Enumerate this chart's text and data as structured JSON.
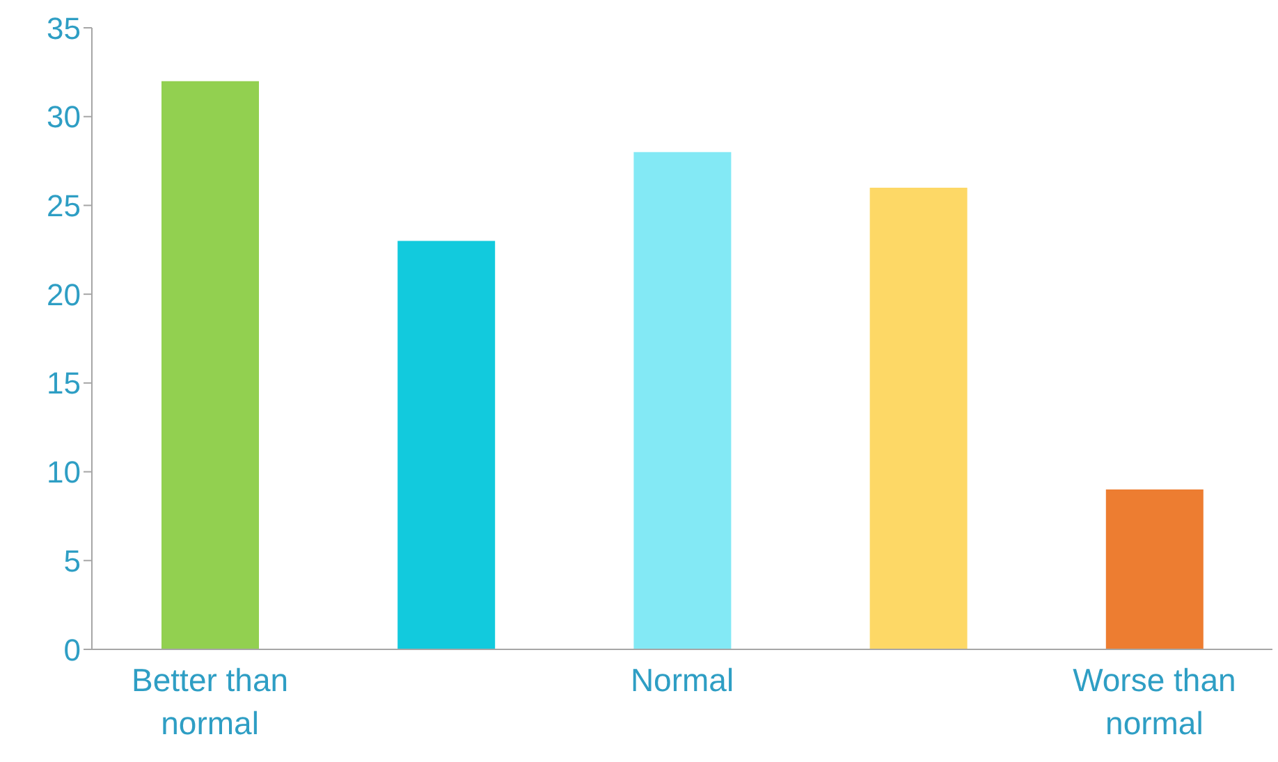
{
  "chart_data": {
    "type": "bar",
    "categories": [
      "Better than normal",
      null,
      "Normal",
      null,
      "Worse than normal"
    ],
    "values": [
      32,
      23,
      28,
      26,
      9
    ],
    "colors": [
      "#92d050",
      "#12cadd",
      "#83e9f5",
      "#fdd866",
      "#ed7d31"
    ],
    "ylim": [
      0,
      35
    ],
    "yticks": [
      0,
      5,
      10,
      15,
      20,
      25,
      30,
      35
    ],
    "grid": false
  }
}
